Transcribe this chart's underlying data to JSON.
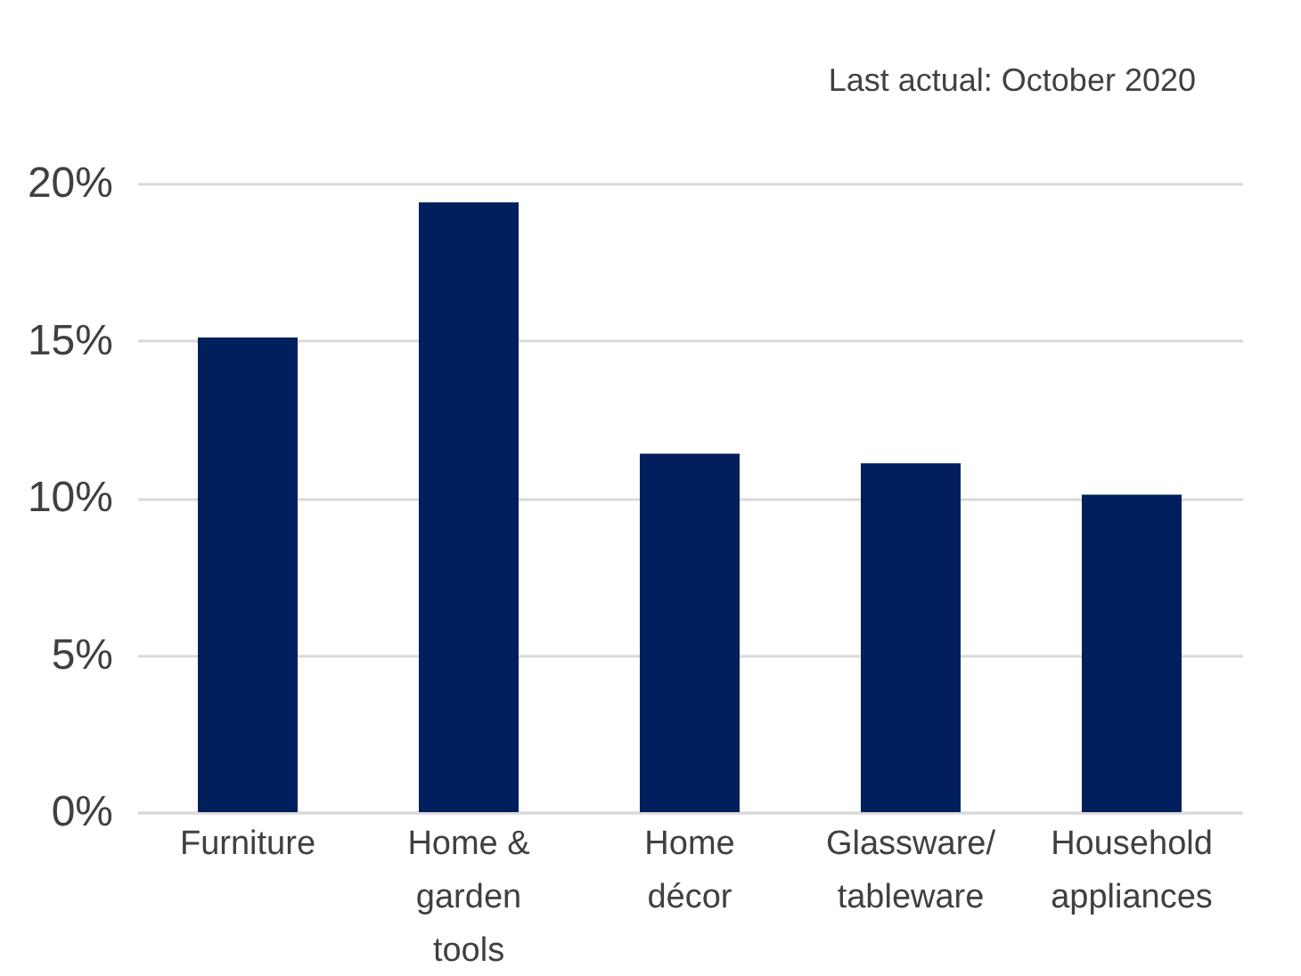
{
  "chart_data": {
    "type": "bar",
    "categories": [
      "Furniture",
      "Home & garden tools",
      "Home décor",
      "Glassware/tableware",
      "Household appliances"
    ],
    "values": [
      15.1,
      19.4,
      11.4,
      11.1,
      10.1
    ],
    "color": "#001f5c",
    "ylim": [
      0,
      20
    ],
    "yticks": [
      {
        "value": 0,
        "label": "0%"
      },
      {
        "value": 5,
        "label": "5%"
      },
      {
        "value": 10,
        "label": "10%"
      },
      {
        "value": 15,
        "label": "15%"
      },
      {
        "value": 20,
        "label": "20%"
      }
    ],
    "grid": "y",
    "annotations": [
      "Last actual: October 2020"
    ]
  }
}
